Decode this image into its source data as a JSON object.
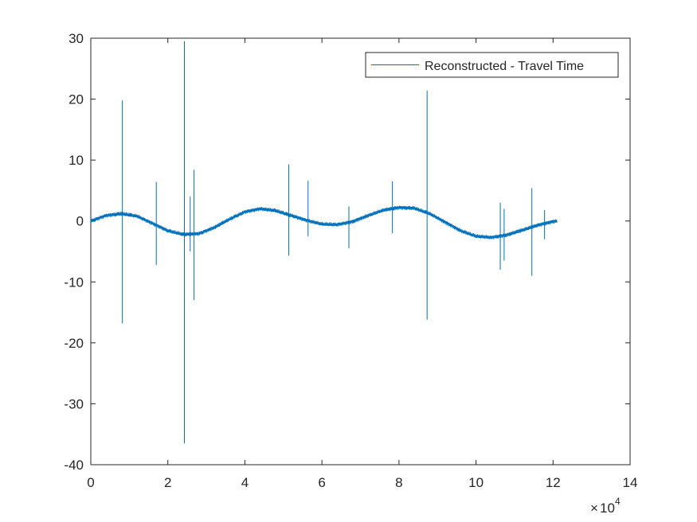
{
  "chart_data": {
    "type": "line",
    "title": "",
    "xlabel": "",
    "ylabel": "",
    "xlim": [
      0,
      140000
    ],
    "ylim": [
      -40,
      30
    ],
    "x_ticks": [
      0,
      20000,
      40000,
      60000,
      80000,
      100000,
      120000,
      140000
    ],
    "x_tick_labels": [
      "0",
      "2",
      "4",
      "6",
      "8",
      "10",
      "12",
      "14"
    ],
    "y_ticks": [
      30,
      20,
      10,
      0,
      -10,
      -20,
      -30,
      -40
    ],
    "y_tick_labels": [
      "30",
      "20",
      "10",
      "0",
      "-10",
      "-20",
      "-30",
      "-40"
    ],
    "x_exponent_base": "10",
    "x_exponent_power": "4",
    "x_exponent_times": "×",
    "grid": false,
    "legend_position": "top-right",
    "colors": {
      "series": "#0072bd",
      "axes": "#262626",
      "background": "#ffffff"
    },
    "series": [
      {
        "name": "Reconstructed - Travel Time",
        "x": [
          0,
          4000,
          8000,
          12000,
          16000,
          20000,
          24000,
          28000,
          32000,
          36000,
          40000,
          44000,
          48000,
          52000,
          56000,
          60000,
          64000,
          68000,
          72000,
          76000,
          80000,
          84000,
          88000,
          92000,
          96000,
          100000,
          104000,
          108000,
          112000,
          116000,
          120000,
          121000
        ],
        "y": [
          0,
          0.9,
          1.2,
          0.8,
          -0.4,
          -1.6,
          -2.2,
          -2.1,
          -1.1,
          0.3,
          1.5,
          2.0,
          1.7,
          0.9,
          0.1,
          -0.5,
          -0.6,
          -0.1,
          0.9,
          1.8,
          2.2,
          2.1,
          1.2,
          -0.2,
          -1.6,
          -2.5,
          -2.7,
          -2.3,
          -1.5,
          -0.7,
          -0.1,
          0
        ],
        "spikes": [
          {
            "x": 8200,
            "max": 19.8,
            "min": -16.8
          },
          {
            "x": 17000,
            "max": 6.4,
            "min": -7.2
          },
          {
            "x": 24300,
            "max": 29.5,
            "min": -36.5
          },
          {
            "x": 25800,
            "max": 4.0,
            "min": -5.0
          },
          {
            "x": 26800,
            "max": 8.4,
            "min": -13.0
          },
          {
            "x": 51400,
            "max": 9.3,
            "min": -5.7
          },
          {
            "x": 56400,
            "max": 6.6,
            "min": -2.5
          },
          {
            "x": 67000,
            "max": 2.4,
            "min": -4.5
          },
          {
            "x": 78300,
            "max": 6.5,
            "min": -2.0
          },
          {
            "x": 87300,
            "max": 21.4,
            "min": -16.2
          },
          {
            "x": 106300,
            "max": 3.0,
            "min": -8.0
          },
          {
            "x": 107300,
            "max": 2.0,
            "min": -6.5
          },
          {
            "x": 114500,
            "max": 5.4,
            "min": -9.0
          },
          {
            "x": 117800,
            "max": 1.8,
            "min": -3.0
          }
        ]
      }
    ]
  }
}
